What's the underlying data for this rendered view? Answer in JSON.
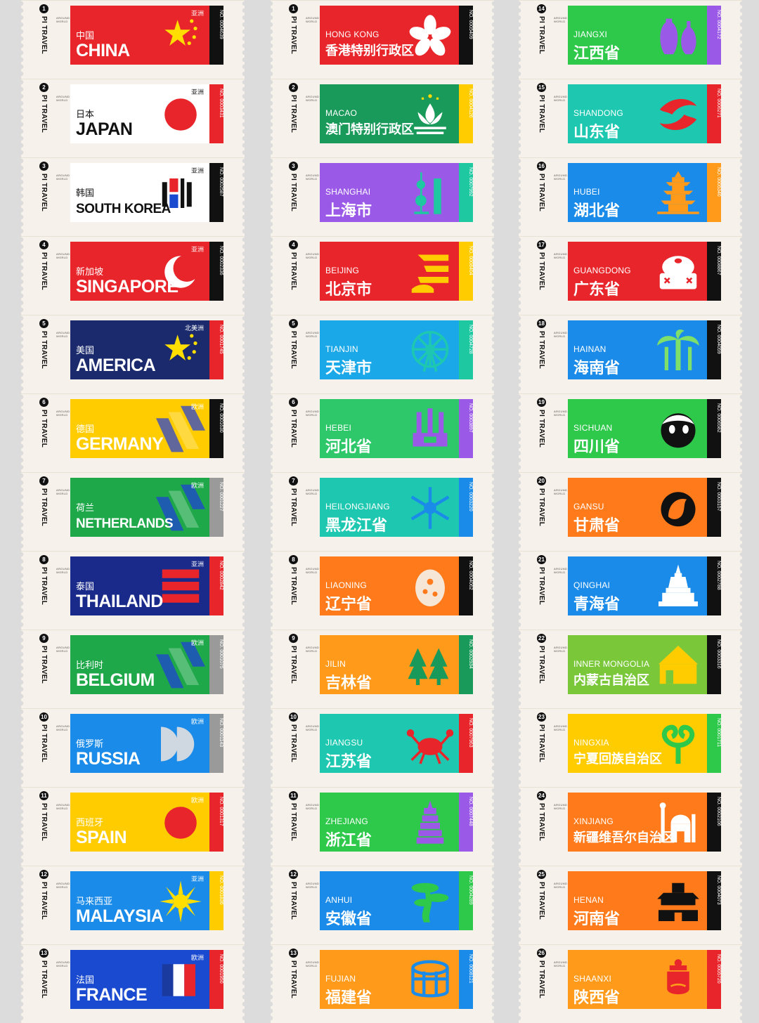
{
  "brand": "PI TRAVEL",
  "brand_sub": "AROUND WORLD",
  "columns": [
    {
      "tickets": [
        {
          "num": "1",
          "region": "亚洲",
          "cn": "中国",
          "en": "CHINA",
          "no": "NO. 0004639",
          "bg": "#e8252a",
          "strip": "#111111",
          "icon": "stars-icon"
        },
        {
          "num": "2",
          "region": "亚洲",
          "cn": "日本",
          "en": "JAPAN",
          "no": "NO. 0003431",
          "bg": "#ffffff",
          "strip": "#e8252a",
          "icon": "sun-disc-icon"
        },
        {
          "num": "3",
          "region": "亚洲",
          "cn": "韩国",
          "en": "SOUTH KOREA",
          "no": "NO. 0002587",
          "bg": "#ffffff",
          "strip": "#111111",
          "icon": "trigram-icon"
        },
        {
          "num": "4",
          "region": "亚洲",
          "cn": "新加坡",
          "en": "SINGAPORE",
          "no": "NO. 0002336",
          "bg": "#e8252a",
          "strip": "#111111",
          "icon": "crescent-icon"
        },
        {
          "num": "5",
          "region": "北美洲",
          "cn": "美国",
          "en": "AMERICA",
          "no": "NO. 0001745",
          "bg": "#1a2a6c",
          "strip": "#e8252a",
          "icon": "stars-icon"
        },
        {
          "num": "6",
          "region": "欧洲",
          "cn": "德国",
          "en": "GERMANY",
          "no": "NO. 0001630",
          "bg": "#ffcc00",
          "strip": "#111111",
          "icon": "stripes-icon"
        },
        {
          "num": "7",
          "region": "欧洲",
          "cn": "荷兰",
          "en": "NETHERLANDS",
          "no": "NO. 0001227",
          "bg": "#1ea84a",
          "strip": "#9a9a9a",
          "icon": "stripes-icon"
        },
        {
          "num": "8",
          "region": "亚洲",
          "cn": "泰国",
          "en": "THAILAND",
          "no": "NO. 0002842",
          "bg": "#1a2a8a",
          "strip": "#e8252a",
          "icon": "bars-icon"
        },
        {
          "num": "9",
          "region": "欧洲",
          "cn": "比利时",
          "en": "BELGIUM",
          "no": "NO. 0001075",
          "bg": "#1ea84a",
          "strip": "#9a9a9a",
          "icon": "stripes-icon"
        },
        {
          "num": "10",
          "region": "欧洲",
          "cn": "俄罗斯",
          "en": "RUSSIA",
          "no": "NO. 0001143",
          "bg": "#1a8be8",
          "strip": "#9a9a9a",
          "icon": "half-circles-icon"
        },
        {
          "num": "11",
          "region": "欧洲",
          "cn": "西班牙",
          "en": "SPAIN",
          "no": "NO. 0001317",
          "bg": "#ffcc00",
          "strip": "#e8252a",
          "icon": "sun-disc-icon"
        },
        {
          "num": "12",
          "region": "亚洲",
          "cn": "马来西亚",
          "en": "MALAYSIA",
          "no": "NO. 0001836",
          "bg": "#1a8be8",
          "strip": "#ffcc00",
          "icon": "sunburst-icon"
        },
        {
          "num": "13",
          "region": "欧洲",
          "cn": "法国",
          "en": "FRANCE",
          "no": "NO. 0001950",
          "bg": "#1a4ad0",
          "strip": "#e8252a",
          "icon": "tricolor-icon"
        }
      ]
    },
    {
      "tickets": [
        {
          "num": "1",
          "en": "HONG KONG",
          "cn": "香港特别行政区",
          "no": "NO. 0005409",
          "bg": "#e8252a",
          "strip": "#111111",
          "icon": "bauhinia-icon"
        },
        {
          "num": "2",
          "en": "MACAO",
          "cn": "澳门特别行政区",
          "no": "NO. 0004126",
          "bg": "#1a9a5a",
          "strip": "#ffcc00",
          "icon": "lotus-icon"
        },
        {
          "num": "3",
          "en": "SHANGHAI",
          "cn": "上海市",
          "no": "NO. 0007992",
          "bg": "#9b59e8",
          "strip": "#1ec8a0",
          "icon": "tower-icon"
        },
        {
          "num": "4",
          "en": "BEIJING",
          "cn": "北京市",
          "no": "NO. 0008404",
          "bg": "#e8252a",
          "strip": "#ffcc00",
          "icon": "wave-icon"
        },
        {
          "num": "5",
          "en": "TIANJIN",
          "cn": "天津市",
          "no": "NO. 0004728",
          "bg": "#1aa8e8",
          "strip": "#1ec8a0",
          "icon": "ferris-wheel-icon"
        },
        {
          "num": "6",
          "en": "HEBEI",
          "cn": "河北省",
          "no": "NO. 0003897",
          "bg": "#2ec86a",
          "strip": "#9b59e8",
          "icon": "tripod-icon"
        },
        {
          "num": "7",
          "en": "HEILONGJIANG",
          "cn": "黑龙江省",
          "no": "NO. 0003220",
          "bg": "#1ec8b0",
          "strip": "#1a8be8",
          "icon": "snowflake-icon"
        },
        {
          "num": "8",
          "en": "LIAONING",
          "cn": "辽宁省",
          "no": "NO. 0004062",
          "bg": "#ff7a1a",
          "strip": "#111111",
          "icon": "shell-icon"
        },
        {
          "num": "9",
          "en": "JILIN",
          "cn": "吉林省",
          "no": "NO. 0002934",
          "bg": "#ff9a1a",
          "strip": "#1a9a5a",
          "icon": "forest-icon"
        },
        {
          "num": "10",
          "en": "JIANGSU",
          "cn": "江苏省",
          "no": "NO. 0007963",
          "bg": "#1ec8b0",
          "strip": "#e8252a",
          "icon": "crab-icon"
        },
        {
          "num": "11",
          "en": "ZHEJIANG",
          "cn": "浙江省",
          "no": "NO. 0007448",
          "bg": "#2ec84a",
          "strip": "#9b59e8",
          "icon": "pagoda-icon"
        },
        {
          "num": "12",
          "en": "ANHUI",
          "cn": "安徽省",
          "no": "NO. 0004289",
          "bg": "#1a8be8",
          "strip": "#2ec84a",
          "icon": "pine-icon"
        },
        {
          "num": "13",
          "en": "FUJIAN",
          "cn": "福建省",
          "no": "NO. 0008121",
          "bg": "#ff9a1a",
          "strip": "#1a8be8",
          "icon": "tulou-icon"
        }
      ]
    },
    {
      "tickets": [
        {
          "num": "14",
          "en": "JIANGXI",
          "cn": "江西省",
          "no": "NO. 0004172",
          "bg": "#2ec84a",
          "strip": "#9b59e8",
          "icon": "vase-icon"
        },
        {
          "num": "15",
          "en": "SHANDONG",
          "cn": "山东省",
          "no": "NO. 0006271",
          "bg": "#1ec8b0",
          "strip": "#e8252a",
          "icon": "fish-icon"
        },
        {
          "num": "16",
          "en": "HUBEI",
          "cn": "湖北省",
          "no": "NO. 0005340",
          "bg": "#1a8be8",
          "strip": "#ff9a1a",
          "icon": "pavilion-icon"
        },
        {
          "num": "17",
          "en": "GUANGDONG",
          "cn": "广东省",
          "no": "NO. 0008867",
          "bg": "#e8252a",
          "strip": "#111111",
          "icon": "dimsum-icon"
        },
        {
          "num": "18",
          "en": "HAINAN",
          "cn": "海南省",
          "no": "NO. 0004059",
          "bg": "#1a8be8",
          "strip": "#111111",
          "icon": "palm-icon"
        },
        {
          "num": "19",
          "en": "SICHUAN",
          "cn": "四川省",
          "no": "NO. 0006582",
          "bg": "#2ec84a",
          "strip": "#111111",
          "icon": "panda-icon"
        },
        {
          "num": "20",
          "en": "GANSU",
          "cn": "甘肃省",
          "no": "NO. 0003157",
          "bg": "#ff7a1a",
          "strip": "#111111",
          "icon": "horse-icon"
        },
        {
          "num": "21",
          "en": "QINGHAI",
          "cn": "青海省",
          "no": "NO. 0002788",
          "bg": "#1a8be8",
          "strip": "#111111",
          "icon": "stupa-icon"
        },
        {
          "num": "22",
          "en": "INNER MONGOLIA",
          "cn": "内蒙古自治区",
          "no": "NO. 0003316",
          "bg": "#7ac83a",
          "strip": "#111111",
          "icon": "yurt-icon"
        },
        {
          "num": "23",
          "en": "NINGXIA",
          "cn": "宁夏回族自治区",
          "no": "NO. 0001711",
          "bg": "#ffcc00",
          "strip": "#2ec84a",
          "icon": "ram-icon"
        },
        {
          "num": "24",
          "en": "XINJIANG",
          "cn": "新疆维吾尔自治区",
          "no": "NO. 0002106",
          "bg": "#ff7a1a",
          "strip": "#111111",
          "icon": "mosque-icon"
        },
        {
          "num": "25",
          "en": "HENAN",
          "cn": "河南省",
          "no": "NO. 0004073",
          "bg": "#ff7a1a",
          "strip": "#111111",
          "icon": "temple-icon"
        },
        {
          "num": "26",
          "en": "SHAANXI",
          "cn": "陕西省",
          "no": "NO. 0005720",
          "bg": "#ff9a1a",
          "strip": "#e8252a",
          "icon": "warrior-icon"
        }
      ]
    }
  ]
}
